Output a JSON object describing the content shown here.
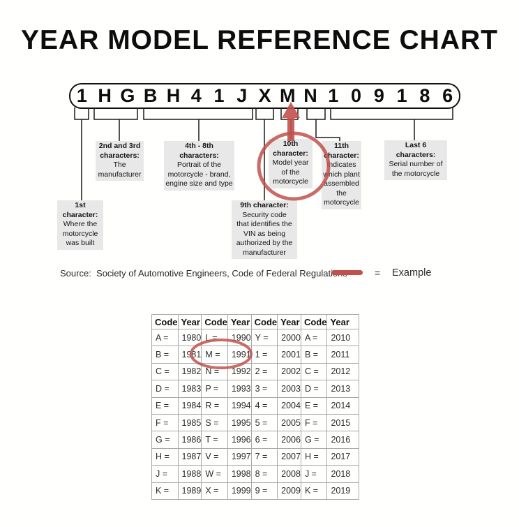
{
  "title": "YEAR MODEL REFERENCE CHART",
  "vin": {
    "characters": [
      "1",
      "H",
      "G",
      "B",
      "H",
      "4",
      "1",
      "J",
      "X",
      "M",
      "N",
      "1",
      "0",
      "9",
      "1",
      "8",
      "6"
    ],
    "highlighted_character": "M",
    "highlighted_position": "10th"
  },
  "callouts": [
    {
      "id": "1st-character",
      "title_lines": [
        "1st",
        "character:"
      ],
      "body_lines": [
        "Where the",
        "motorcycle",
        "was built"
      ],
      "highlighted": false
    },
    {
      "id": "2nd-3rd-characters",
      "title_lines": [
        "2nd and 3rd",
        "characters:"
      ],
      "body_lines": [
        "The",
        "manufacturer"
      ],
      "highlighted": false
    },
    {
      "id": "4th-8th-characters",
      "title_lines": [
        "4th - 8th",
        "characters:"
      ],
      "body_lines": [
        "Portrait of the",
        "motorcycle - brand,",
        "engine size and type"
      ],
      "highlighted": false
    },
    {
      "id": "9th-character",
      "title_lines": [
        "9th character:"
      ],
      "body_lines": [
        "Security code",
        "that identifies the",
        "VIN as being",
        "authorized by the",
        "manufacturer"
      ],
      "highlighted": false
    },
    {
      "id": "10th-character",
      "title_lines": [
        "10th",
        "character:"
      ],
      "body_lines": [
        "Model year",
        "of the",
        "motorcycle"
      ],
      "highlighted": true
    },
    {
      "id": "11th-character",
      "title_lines": [
        "11th",
        "character:"
      ],
      "body_lines": [
        "Indicates",
        "which plant",
        "assembled",
        "the",
        "motorcycle"
      ],
      "highlighted": false
    },
    {
      "id": "last-6-characters",
      "title_lines": [
        "Last 6",
        "characters:"
      ],
      "body_lines": [
        "Serial number of",
        "the motorcycle"
      ],
      "highlighted": false
    }
  ],
  "source": "Source:  Society of Automotive Engineers, Code of Federal Regulations",
  "legend": {
    "equals": "=",
    "label": "Example"
  },
  "colors": {
    "accent_red": "#c0524d",
    "callout_gray": "#e8e8e8",
    "table_border": "#a8a8a8"
  },
  "table": {
    "headers": [
      "Code",
      "Year",
      "Code",
      "Year",
      "Code",
      "Year",
      "Code",
      "Year"
    ],
    "rows": [
      [
        "A =",
        "1980",
        "L =",
        "1990",
        "Y =",
        "2000",
        "A =",
        "2010"
      ],
      [
        "B =",
        "1981",
        "M =",
        "1991",
        "1 =",
        "2001",
        "B =",
        "2011"
      ],
      [
        "C =",
        "1982",
        "N =",
        "1992",
        "2 =",
        "2002",
        "C =",
        "2012"
      ],
      [
        "D =",
        "1983",
        "P =",
        "1993",
        "3 =",
        "2003",
        "D =",
        "2013"
      ],
      [
        "E =",
        "1984",
        "R =",
        "1994",
        "4 =",
        "2004",
        "E =",
        "2014"
      ],
      [
        "F =",
        "1985",
        "S =",
        "1995",
        "5 =",
        "2005",
        "F =",
        "2015"
      ],
      [
        "G =",
        "1986",
        "T =",
        "1996",
        "6 =",
        "2006",
        "G =",
        "2016"
      ],
      [
        "H =",
        "1987",
        "V =",
        "1997",
        "7 =",
        "2007",
        "H =",
        "2017"
      ],
      [
        "J =",
        "1988",
        "W =",
        "1998",
        "8 =",
        "2008",
        "J =",
        "2018"
      ],
      [
        "K =",
        "1989",
        "X =",
        "1999",
        "9 =",
        "2009",
        "K =",
        "2019"
      ]
    ],
    "circled_entry": "M = 1991"
  }
}
